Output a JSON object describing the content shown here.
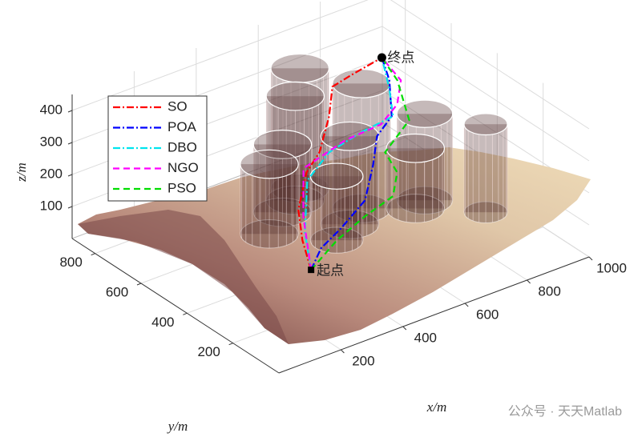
{
  "chart_data": {
    "type": "path3d",
    "xlabel": "x/m",
    "ylabel": "y/m",
    "zlabel": "z/m",
    "xlim": [
      0,
      1000
    ],
    "ylim": [
      0,
      900
    ],
    "zlim": [
      0,
      450
    ],
    "xticks": [
      200,
      400,
      600,
      800,
      1000
    ],
    "yticks": [
      200,
      400,
      600,
      800
    ],
    "zticks": [
      100,
      200,
      300,
      400
    ],
    "grid": true,
    "legend": "upper left",
    "start": {
      "label": "起点",
      "x": 340,
      "y": 319,
      "z": 50
    },
    "goal": {
      "label": "终点",
      "x": 800,
      "y": 632,
      "z": 400
    },
    "obstacles": [
      {
        "x": 624,
        "y": 751,
        "r": 75,
        "h": 375
      },
      {
        "x": 577,
        "y": 708,
        "r": 75,
        "h": 325
      },
      {
        "x": 842,
        "y": 502,
        "r": 72,
        "h": 270
      },
      {
        "x": 687,
        "y": 568,
        "r": 75,
        "h": 390
      },
      {
        "x": 797,
        "y": 482,
        "r": 75,
        "h": 188
      },
      {
        "x": 929,
        "y": 354,
        "r": 56,
        "h": 275
      },
      {
        "x": 513,
        "y": 677,
        "r": 75,
        "h": 212
      },
      {
        "x": 613,
        "y": 519,
        "r": 75,
        "h": 275
      },
      {
        "x": 418,
        "y": 606,
        "r": 75,
        "h": 218
      },
      {
        "x": 536,
        "y": 472,
        "r": 68,
        "h": 200
      }
    ],
    "series": [
      {
        "name": "SO",
        "color": "#ff0000",
        "line_style": "dashdot",
        "x": [
          340,
          375,
          422,
          507,
          556,
          638,
          688,
          731,
          800
        ],
        "y": [
          319,
          404,
          485,
          564,
          574,
          643,
          696,
          663,
          632
        ],
        "z": [
          50,
          90,
          130,
          180,
          220,
          270,
          320,
          360,
          400
        ]
      },
      {
        "name": "POA",
        "color": "#0000ff",
        "line_style": "dashdot",
        "x": [
          340,
          398,
          471,
          569,
          658,
          714,
          757,
          805,
          800
        ],
        "y": [
          319,
          354,
          366,
          393,
          478,
          537,
          531,
          606,
          632
        ],
        "z": [
          50,
          80,
          110,
          150,
          190,
          230,
          280,
          340,
          400
        ]
      },
      {
        "name": "DBO",
        "color": "#00e5ee",
        "line_style": "dashdot",
        "x": [
          340,
          405,
          513,
          596,
          674,
          739,
          769,
          800
        ],
        "y": [
          319,
          434,
          569,
          586,
          552,
          501,
          558,
          632
        ],
        "z": [
          50,
          90,
          150,
          200,
          250,
          300,
          350,
          400
        ]
      },
      {
        "name": "NGO",
        "color": "#ff00ff",
        "line_style": "dashed",
        "x": [
          340,
          432,
          523,
          646,
          720,
          765,
          808,
          800
        ],
        "y": [
          319,
          477,
          599,
          584,
          527,
          518,
          560,
          632
        ],
        "z": [
          50,
          110,
          170,
          220,
          270,
          320,
          360,
          400
        ]
      },
      {
        "name": "PSO",
        "color": "#00dd00",
        "line_style": "dashed",
        "x": [
          340,
          456,
          558,
          639,
          682,
          680,
          780,
          821,
          800
        ],
        "y": [
          319,
          363,
          379,
          366,
          406,
          456,
          486,
          593,
          632
        ],
        "z": [
          50,
          80,
          110,
          150,
          190,
          230,
          280,
          340,
          400
        ]
      }
    ]
  },
  "watermark": "公众号 · 天天Matlab"
}
